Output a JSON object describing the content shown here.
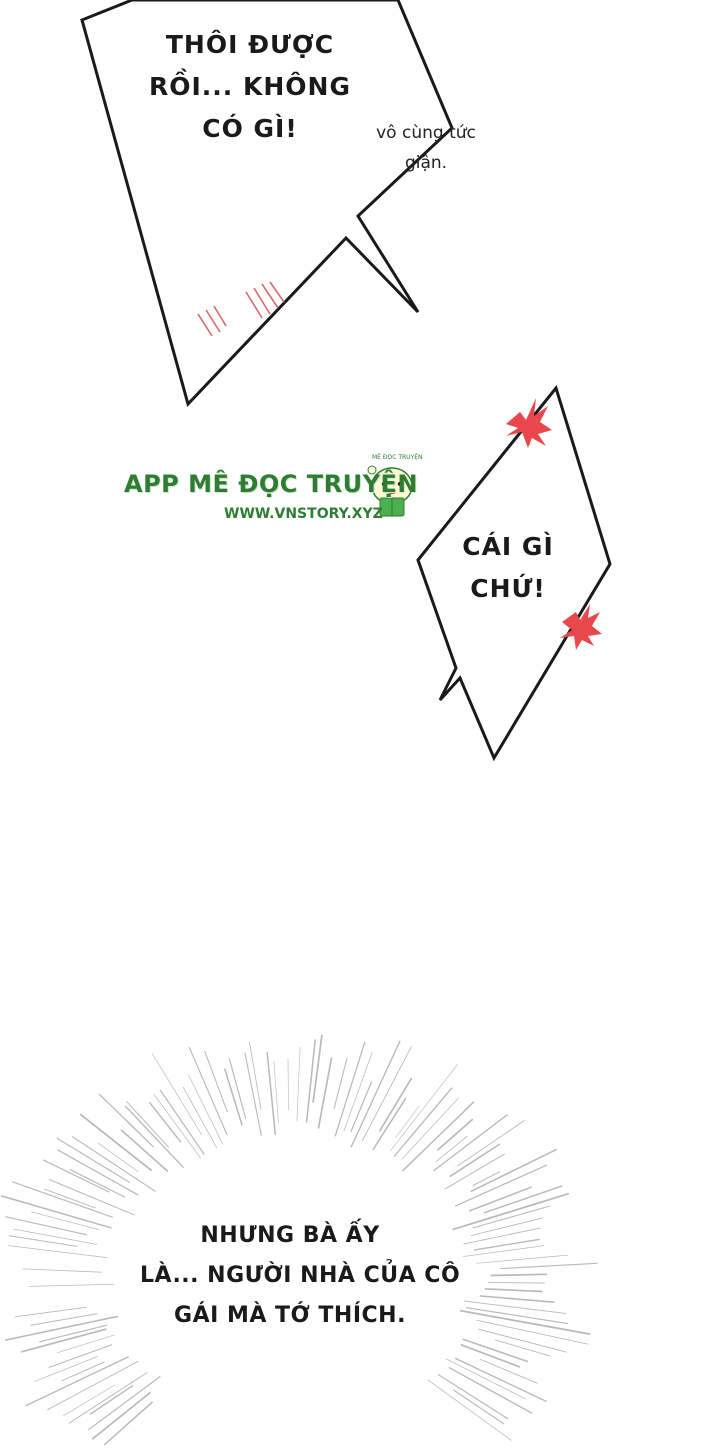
{
  "bubble_top": {
    "lines": [
      "THÔI ĐƯỢC",
      "RỒI... KHÔNG",
      "CÓ GÌ!"
    ]
  },
  "side_note": {
    "lines": [
      "vô cùng tức",
      "giận."
    ]
  },
  "bubble_middle": {
    "lines": [
      "CÁI GÌ",
      "CHỨ!"
    ]
  },
  "watermark": {
    "app_name": "APP MÊ ĐỌC TRUYỆN",
    "url": "WWW.VNSTORY.XYZ",
    "mascot_caption": "MÊ ĐỌC TRUYỆN",
    "color": "#2e7d32"
  },
  "burst": {
    "lines": [
      "NHƯNG BÀ ẤY",
      "LÀ... NGƯỜI NHÀ CỦA CÔ",
      "GÁI MÀ TỚ THÍCH."
    ]
  },
  "colors": {
    "anger_mark": "#e8474c",
    "ink": "#1a1a1a",
    "burst_lines": "#b9b9b9"
  }
}
